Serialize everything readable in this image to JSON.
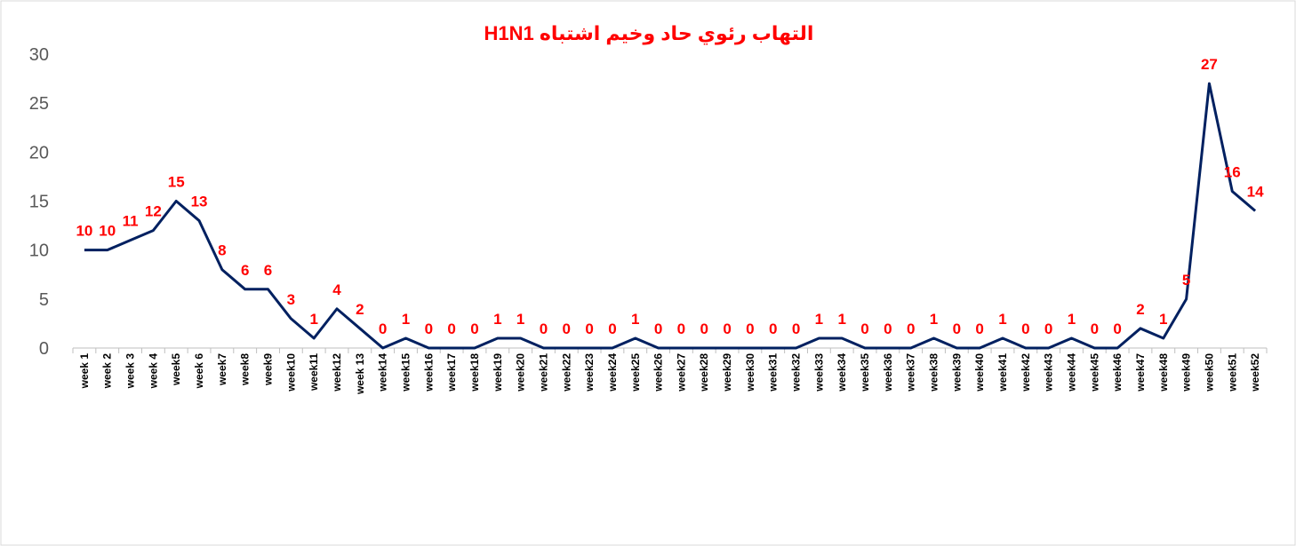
{
  "chart_data": {
    "type": "line",
    "title": "التهاب رئوي حاد وخيم اشتباه  H1N1",
    "categories": [
      "week 1",
      "week 2",
      "week 3",
      "week 4",
      "week5",
      "week 6",
      "week7",
      "week8",
      "week9",
      "week10",
      "week11",
      "week12",
      "week 13",
      "week14",
      "week15",
      "week16",
      "week17",
      "week18",
      "week19",
      "week20",
      "week21",
      "week22",
      "week23",
      "week24",
      "week25",
      "week26",
      "week27",
      "week28",
      "week29",
      "week30",
      "week31",
      "week32",
      "week33",
      "week34",
      "week35",
      "week36",
      "week37",
      "week38",
      "week39",
      "week40",
      "week41",
      "week42",
      "week43",
      "week44",
      "week45",
      "week46",
      "week47",
      "week48",
      "week49",
      "week50",
      "week51",
      "week52"
    ],
    "values": [
      10,
      10,
      11,
      12,
      15,
      13,
      8,
      6,
      6,
      3,
      1,
      4,
      2,
      0,
      1,
      0,
      0,
      0,
      1,
      1,
      0,
      0,
      0,
      0,
      1,
      0,
      0,
      0,
      0,
      0,
      0,
      0,
      1,
      1,
      0,
      0,
      0,
      1,
      0,
      0,
      1,
      0,
      0,
      1,
      0,
      0,
      2,
      1,
      5,
      27,
      16,
      14
    ],
    "color": "#002060",
    "label_color": "#ff0000",
    "ylim": [
      0,
      30
    ],
    "yticks": [
      0,
      5,
      10,
      15,
      20,
      25,
      30
    ],
    "grid": false
  }
}
